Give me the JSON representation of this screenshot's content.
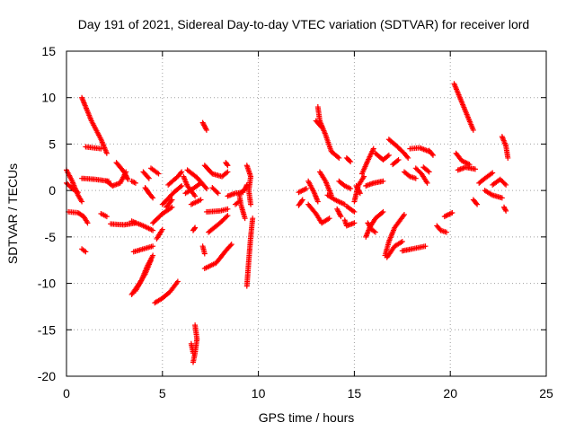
{
  "chart_data": {
    "type": "scatter",
    "title": "Day 191 of 2021, Sidereal Day-to-day VTEC variation (SDTVAR) for receiver lord",
    "xlabel": "GPS time / hours",
    "ylabel": "SDTVAR / TECUs",
    "xlim": [
      0,
      25
    ],
    "ylim": [
      -20,
      15
    ],
    "x_ticks": [
      0,
      5,
      10,
      15,
      20,
      25
    ],
    "y_ticks": [
      -20,
      -15,
      -10,
      -5,
      0,
      5,
      10,
      15
    ],
    "grid": true,
    "marker": "plus",
    "marker_color": "#ff0000",
    "arcs": [
      [
        [
          0.0,
          2.2
        ],
        [
          0.3,
          1.0
        ],
        [
          0.6,
          -0.5
        ],
        [
          0.8,
          -1.2
        ]
      ],
      [
        [
          0.0,
          0.8
        ],
        [
          0.3,
          0.2
        ],
        [
          0.6,
          -0.2
        ]
      ],
      [
        [
          0.1,
          -2.3
        ],
        [
          0.6,
          -2.4
        ],
        [
          0.9,
          -2.8
        ],
        [
          1.1,
          -3.5
        ]
      ],
      [
        [
          0.8,
          -6.3
        ],
        [
          1.0,
          -6.6
        ]
      ],
      [
        [
          0.8,
          10.0
        ],
        [
          1.0,
          9.0
        ],
        [
          1.3,
          7.5
        ],
        [
          1.8,
          5.5
        ],
        [
          2.1,
          4.0
        ]
      ],
      [
        [
          1.0,
          4.7
        ],
        [
          1.8,
          4.5
        ]
      ],
      [
        [
          0.8,
          1.3
        ],
        [
          1.5,
          1.2
        ],
        [
          2.2,
          1.0
        ]
      ],
      [
        [
          2.1,
          1.0
        ],
        [
          2.4,
          0.5
        ],
        [
          2.8,
          0.8
        ],
        [
          3.1,
          2.0
        ]
      ],
      [
        [
          2.6,
          3.0
        ],
        [
          3.0,
          2.0
        ],
        [
          3.2,
          1.2
        ]
      ],
      [
        [
          1.8,
          -2.5
        ],
        [
          2.1,
          -2.8
        ]
      ],
      [
        [
          2.3,
          -3.6
        ],
        [
          3.0,
          -3.7
        ],
        [
          3.6,
          -3.5
        ]
      ],
      [
        [
          3.4,
          -3.3
        ],
        [
          4.0,
          -3.8
        ],
        [
          4.5,
          -4.3
        ]
      ],
      [
        [
          3.4,
          1.0
        ],
        [
          3.6,
          0.8
        ]
      ],
      [
        [
          4.0,
          2.0
        ],
        [
          4.3,
          1.3
        ]
      ],
      [
        [
          3.4,
          -11.2
        ],
        [
          3.8,
          -10.0
        ],
        [
          4.1,
          -9.0
        ],
        [
          4.4,
          -7.5
        ]
      ],
      [
        [
          3.6,
          -10.8
        ],
        [
          3.9,
          -9.7
        ],
        [
          4.2,
          -8.2
        ],
        [
          4.5,
          -7.0
        ]
      ],
      [
        [
          3.5,
          -6.6
        ],
        [
          4.5,
          -6.0
        ]
      ],
      [
        [
          4.1,
          0.3
        ],
        [
          4.3,
          -0.3
        ],
        [
          4.5,
          -0.8
        ]
      ],
      [
        [
          4.4,
          2.4
        ],
        [
          4.8,
          1.8
        ]
      ],
      [
        [
          4.6,
          -12.1
        ],
        [
          5.0,
          -11.6
        ],
        [
          5.4,
          -10.9
        ],
        [
          5.8,
          -9.8
        ]
      ],
      [
        [
          4.5,
          -3.5
        ],
        [
          5.0,
          -2.5
        ],
        [
          5.5,
          -1.8
        ]
      ],
      [
        [
          4.7,
          -5.2
        ],
        [
          5.0,
          -4.2
        ]
      ],
      [
        [
          5.0,
          -1.5
        ],
        [
          5.6,
          -0.2
        ],
        [
          6.0,
          0.5
        ]
      ],
      [
        [
          5.2,
          -1.8
        ],
        [
          5.5,
          -1.0
        ]
      ],
      [
        [
          5.3,
          0.6
        ],
        [
          5.8,
          1.5
        ],
        [
          6.0,
          2.0
        ]
      ],
      [
        [
          6.1,
          1.5
        ],
        [
          6.3,
          0.5
        ],
        [
          6.7,
          -0.6
        ]
      ],
      [
        [
          6.2,
          -0.3
        ],
        [
          6.6,
          0.2
        ],
        [
          7.0,
          0.8
        ]
      ],
      [
        [
          6.3,
          2.2
        ],
        [
          6.8,
          1.4
        ],
        [
          7.3,
          0.2
        ]
      ],
      [
        [
          6.5,
          -1.5
        ],
        [
          7.0,
          -1.0
        ]
      ],
      [
        [
          6.7,
          -14.5
        ],
        [
          6.8,
          -16.0
        ],
        [
          6.7,
          -17.5
        ],
        [
          6.6,
          -18.5
        ]
      ],
      [
        [
          6.5,
          -16.5
        ],
        [
          6.6,
          -17.5
        ]
      ],
      [
        [
          6.7,
          -4.0
        ],
        [
          6.6,
          -4.3
        ]
      ],
      [
        [
          7.1,
          7.3
        ],
        [
          7.3,
          6.5
        ]
      ],
      [
        [
          7.1,
          -6.0
        ],
        [
          7.2,
          -6.8
        ]
      ],
      [
        [
          7.2,
          2.7
        ],
        [
          7.6,
          1.8
        ],
        [
          8.1,
          1.5
        ],
        [
          8.4,
          2.0
        ]
      ],
      [
        [
          7.2,
          -8.4
        ],
        [
          7.8,
          -7.8
        ],
        [
          8.3,
          -6.5
        ],
        [
          8.6,
          -5.8
        ]
      ],
      [
        [
          7.3,
          -2.3
        ],
        [
          8.0,
          -2.2
        ],
        [
          8.4,
          -2.0
        ]
      ],
      [
        [
          7.4,
          -4.5
        ],
        [
          8.0,
          -3.5
        ],
        [
          8.4,
          -2.7
        ]
      ],
      [
        [
          7.6,
          0.3
        ],
        [
          7.9,
          -0.3
        ]
      ],
      [
        [
          8.4,
          -0.6
        ],
        [
          8.8,
          -0.3
        ],
        [
          9.2,
          -0.2
        ]
      ],
      [
        [
          8.8,
          -1.5
        ],
        [
          9.0,
          -1.2
        ]
      ],
      [
        [
          8.3,
          3.0
        ],
        [
          8.4,
          2.7
        ]
      ],
      [
        [
          9.3,
          -3.0
        ],
        [
          9.1,
          -1.6
        ],
        [
          9.0,
          -0.4
        ]
      ],
      [
        [
          9.4,
          2.7
        ],
        [
          9.6,
          1.5
        ],
        [
          9.5,
          0.0
        ],
        [
          9.6,
          -1.5
        ]
      ],
      [
        [
          9.7,
          -3.0
        ],
        [
          9.6,
          -5.0
        ],
        [
          9.5,
          -7.5
        ],
        [
          9.4,
          -10.3
        ]
      ],
      [
        [
          9.4,
          0.6
        ],
        [
          9.3,
          0.1
        ],
        [
          9.1,
          -0.2
        ]
      ],
      [
        [
          12.1,
          -0.2
        ],
        [
          12.3,
          0.0
        ],
        [
          12.5,
          0.2
        ]
      ],
      [
        [
          12.1,
          -1.6
        ],
        [
          12.3,
          -1.0
        ]
      ],
      [
        [
          12.6,
          1.0
        ],
        [
          12.9,
          -0.2
        ],
        [
          13.1,
          -1.2
        ]
      ],
      [
        [
          12.6,
          -1.5
        ],
        [
          13.0,
          -2.5
        ],
        [
          13.3,
          -3.5
        ],
        [
          13.7,
          -3.0
        ]
      ],
      [
        [
          13.1,
          9.0
        ],
        [
          13.2,
          7.5
        ],
        [
          13.5,
          6.0
        ],
        [
          13.8,
          4.2
        ],
        [
          14.2,
          3.5
        ]
      ],
      [
        [
          13.0,
          7.5
        ],
        [
          13.3,
          6.8
        ]
      ],
      [
        [
          13.2,
          2.0
        ],
        [
          13.5,
          1.0
        ],
        [
          13.8,
          -0.5
        ]
      ],
      [
        [
          13.6,
          -0.5
        ],
        [
          14.0,
          -1.0
        ],
        [
          14.5,
          -1.5
        ]
      ],
      [
        [
          14.1,
          -2.0
        ],
        [
          14.3,
          -2.8
        ]
      ],
      [
        [
          14.2,
          1.0
        ],
        [
          14.5,
          0.5
        ],
        [
          14.8,
          0.2
        ]
      ],
      [
        [
          14.5,
          -3.2
        ],
        [
          14.6,
          -3.8
        ],
        [
          15.0,
          -3.5
        ]
      ],
      [
        [
          15.0,
          -2.3
        ],
        [
          14.8,
          -2.0
        ],
        [
          14.6,
          -1.7
        ]
      ],
      [
        [
          14.6,
          3.5
        ],
        [
          14.8,
          3.1
        ]
      ],
      [
        [
          15.0,
          -1.2
        ],
        [
          15.2,
          0.5
        ],
        [
          15.5,
          1.5
        ]
      ],
      [
        [
          15.1,
          0.5
        ],
        [
          15.3,
          -0.3
        ]
      ],
      [
        [
          15.6,
          0.5
        ],
        [
          16.0,
          0.8
        ],
        [
          16.5,
          1.0
        ]
      ],
      [
        [
          15.4,
          1.8
        ],
        [
          15.7,
          3.2
        ],
        [
          16.0,
          4.5
        ]
      ],
      [
        [
          15.7,
          -3.5
        ],
        [
          15.9,
          -4.2
        ],
        [
          16.1,
          -4.5
        ]
      ],
      [
        [
          15.6,
          -5.0
        ],
        [
          15.8,
          -4.0
        ],
        [
          16.1,
          -3.0
        ],
        [
          16.5,
          -2.3
        ]
      ],
      [
        [
          16.1,
          4.0
        ],
        [
          16.5,
          3.3
        ],
        [
          16.8,
          3.8
        ]
      ],
      [
        [
          16.6,
          -7.0
        ],
        [
          16.8,
          -5.5
        ],
        [
          17.1,
          -4.0
        ],
        [
          17.6,
          -2.6
        ]
      ],
      [
        [
          16.7,
          -7.2
        ],
        [
          17.1,
          -6.0
        ],
        [
          17.5,
          -5.5
        ]
      ],
      [
        [
          16.8,
          5.5
        ],
        [
          17.2,
          4.8
        ],
        [
          17.6,
          4.0
        ],
        [
          17.8,
          3.5
        ]
      ],
      [
        [
          17.0,
          2.8
        ],
        [
          17.3,
          3.3
        ]
      ],
      [
        [
          17.5,
          -6.5
        ],
        [
          18.0,
          -6.3
        ],
        [
          18.7,
          -6.0
        ]
      ],
      [
        [
          17.6,
          2.0
        ],
        [
          17.9,
          1.5
        ],
        [
          18.2,
          1.3
        ]
      ],
      [
        [
          17.9,
          4.5
        ],
        [
          18.4,
          4.6
        ],
        [
          18.9,
          4.2
        ]
      ],
      [
        [
          18.2,
          2.4
        ],
        [
          18.5,
          1.8
        ],
        [
          18.8,
          0.8
        ]
      ],
      [
        [
          18.6,
          2.5
        ],
        [
          18.9,
          2.0
        ]
      ],
      [
        [
          18.9,
          4.3
        ],
        [
          19.1,
          3.8
        ]
      ],
      [
        [
          19.3,
          -3.8
        ],
        [
          19.5,
          -4.3
        ],
        [
          19.8,
          -4.5
        ]
      ],
      [
        [
          19.7,
          -2.8
        ],
        [
          20.1,
          -2.4
        ]
      ],
      [
        [
          20.2,
          11.5
        ],
        [
          20.5,
          10.0
        ],
        [
          20.8,
          8.5
        ],
        [
          21.2,
          6.5
        ]
      ],
      [
        [
          20.3,
          4.0
        ],
        [
          20.6,
          3.2
        ],
        [
          21.0,
          2.8
        ]
      ],
      [
        [
          20.4,
          2.2
        ],
        [
          20.8,
          2.5
        ],
        [
          21.3,
          2.3
        ]
      ],
      [
        [
          21.5,
          0.8
        ],
        [
          21.8,
          1.3
        ],
        [
          22.2,
          1.9
        ]
      ],
      [
        [
          21.8,
          0.0
        ],
        [
          22.2,
          -0.5
        ],
        [
          22.7,
          -0.8
        ]
      ],
      [
        [
          22.2,
          0.6
        ],
        [
          22.6,
          1.2
        ],
        [
          22.9,
          0.6
        ]
      ],
      [
        [
          22.7,
          5.8
        ],
        [
          22.9,
          4.8
        ],
        [
          23.0,
          3.5
        ]
      ],
      [
        [
          22.8,
          -1.8
        ],
        [
          22.9,
          -2.2
        ]
      ],
      [
        [
          21.2,
          -1.0
        ],
        [
          21.4,
          -1.5
        ]
      ]
    ]
  }
}
